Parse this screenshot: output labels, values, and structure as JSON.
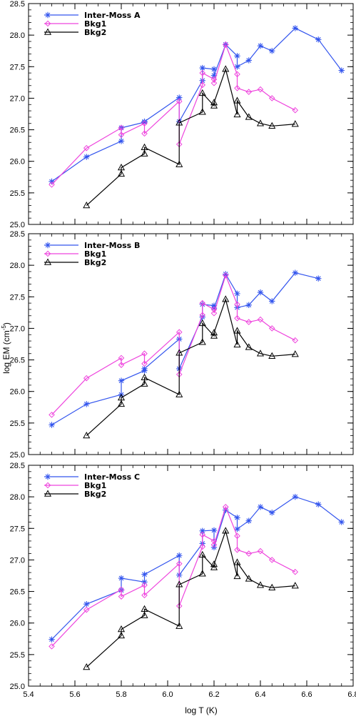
{
  "chart_data": {
    "type": "line",
    "xlabel": "log T (K)",
    "ylabel": "log EM (cm",
    "ylabel_sup": "-5",
    "ylabel_close": ")",
    "xlim": [
      5.4,
      6.8
    ],
    "ylim": [
      25.0,
      28.5
    ],
    "x_ticks": [
      "5.4",
      "5.6",
      "5.8",
      "6.0",
      "6.2",
      "6.4",
      "6.6",
      "6.8"
    ],
    "y_ticks": [
      "25.0",
      "25.5",
      "26.0",
      "26.5",
      "27.0",
      "27.5",
      "28.0",
      "28.5"
    ],
    "colors": {
      "series1": "#3355ee",
      "series2": "#ee44dd",
      "series3": "#000000"
    },
    "markers": {
      "series1": "asterisk",
      "series2": "diamond",
      "series3": "triangle"
    },
    "legend_position": "top-left",
    "panels": [
      {
        "series": [
          {
            "name": "Inter-Moss A",
            "points": [
              [
                5.5,
                25.68
              ],
              [
                5.65,
                26.07
              ],
              [
                5.8,
                26.32
              ],
              [
                5.8,
                26.53
              ],
              [
                5.9,
                26.62
              ],
              [
                5.9,
                26.63
              ],
              [
                6.05,
                27.01
              ],
              [
                6.05,
                26.63
              ],
              [
                6.15,
                27.28
              ],
              [
                6.15,
                27.48
              ],
              [
                6.2,
                27.46
              ],
              [
                6.2,
                27.36
              ],
              [
                6.25,
                27.85
              ],
              [
                6.3,
                27.67
              ],
              [
                6.3,
                27.5
              ],
              [
                6.35,
                27.6
              ],
              [
                6.4,
                27.83
              ],
              [
                6.45,
                27.75
              ],
              [
                6.55,
                28.11
              ],
              [
                6.65,
                27.93
              ],
              [
                6.75,
                27.44
              ]
            ]
          },
          {
            "name": "Bkg1",
            "points": [
              [
                5.5,
                25.63
              ],
              [
                5.65,
                26.21
              ],
              [
                5.8,
                26.53
              ],
              [
                5.8,
                26.42
              ],
              [
                5.9,
                26.6
              ],
              [
                5.9,
                26.44
              ],
              [
                6.05,
                26.95
              ],
              [
                6.05,
                26.27
              ],
              [
                6.15,
                27.21
              ],
              [
                6.15,
                27.4
              ],
              [
                6.2,
                27.3
              ],
              [
                6.2,
                27.24
              ],
              [
                6.25,
                27.85
              ],
              [
                6.3,
                27.38
              ],
              [
                6.3,
                27.16
              ],
              [
                6.35,
                27.1
              ],
              [
                6.4,
                27.14
              ],
              [
                6.45,
                27.0
              ],
              [
                6.55,
                26.81
              ]
            ]
          },
          {
            "name": "Bkg2",
            "points": [
              [
                5.65,
                25.3
              ],
              [
                5.8,
                25.8
              ],
              [
                5.8,
                25.9
              ],
              [
                5.9,
                26.12
              ],
              [
                5.9,
                26.22
              ],
              [
                6.05,
                25.95
              ],
              [
                6.05,
                26.61
              ],
              [
                6.15,
                26.78
              ],
              [
                6.15,
                27.08
              ],
              [
                6.2,
                26.88
              ],
              [
                6.2,
                26.93
              ],
              [
                6.25,
                27.46
              ],
              [
                6.3,
                26.74
              ],
              [
                6.3,
                26.96
              ],
              [
                6.35,
                26.7
              ],
              [
                6.4,
                26.6
              ],
              [
                6.45,
                26.56
              ],
              [
                6.55,
                26.59
              ]
            ]
          }
        ]
      },
      {
        "series": [
          {
            "name": "Inter-Moss B",
            "points": [
              [
                5.5,
                25.47
              ],
              [
                5.65,
                25.8
              ],
              [
                5.8,
                25.95
              ],
              [
                5.8,
                26.17
              ],
              [
                5.9,
                26.33
              ],
              [
                5.9,
                26.36
              ],
              [
                6.05,
                26.83
              ],
              [
                6.05,
                26.36
              ],
              [
                6.15,
                27.18
              ],
              [
                6.15,
                27.38
              ],
              [
                6.2,
                27.36
              ],
              [
                6.2,
                27.32
              ],
              [
                6.25,
                27.86
              ],
              [
                6.3,
                27.55
              ],
              [
                6.3,
                27.33
              ],
              [
                6.35,
                27.37
              ],
              [
                6.4,
                27.57
              ],
              [
                6.45,
                27.43
              ],
              [
                6.55,
                27.88
              ],
              [
                6.65,
                27.79
              ]
            ]
          },
          {
            "name": "Bkg1",
            "points": [
              [
                5.5,
                25.63
              ],
              [
                5.65,
                26.21
              ],
              [
                5.8,
                26.53
              ],
              [
                5.8,
                26.42
              ],
              [
                5.9,
                26.6
              ],
              [
                5.9,
                26.44
              ],
              [
                6.05,
                26.94
              ],
              [
                6.05,
                26.27
              ],
              [
                6.15,
                27.21
              ],
              [
                6.15,
                27.4
              ],
              [
                6.2,
                27.3
              ],
              [
                6.2,
                27.24
              ],
              [
                6.25,
                27.84
              ],
              [
                6.3,
                27.38
              ],
              [
                6.3,
                27.16
              ],
              [
                6.35,
                27.1
              ],
              [
                6.4,
                27.14
              ],
              [
                6.45,
                27.0
              ],
              [
                6.55,
                26.81
              ]
            ]
          },
          {
            "name": "Bkg2",
            "points": [
              [
                5.65,
                25.3
              ],
              [
                5.8,
                25.8
              ],
              [
                5.8,
                25.9
              ],
              [
                5.9,
                26.12
              ],
              [
                5.9,
                26.22
              ],
              [
                6.05,
                25.95
              ],
              [
                6.05,
                26.61
              ],
              [
                6.15,
                26.78
              ],
              [
                6.15,
                27.08
              ],
              [
                6.2,
                26.88
              ],
              [
                6.2,
                26.93
              ],
              [
                6.25,
                27.46
              ],
              [
                6.3,
                26.74
              ],
              [
                6.3,
                26.96
              ],
              [
                6.35,
                26.7
              ],
              [
                6.4,
                26.6
              ],
              [
                6.45,
                26.56
              ],
              [
                6.55,
                26.59
              ]
            ]
          }
        ]
      },
      {
        "series": [
          {
            "name": "Inter-Moss C",
            "points": [
              [
                5.5,
                25.74
              ],
              [
                5.65,
                26.3
              ],
              [
                5.8,
                26.52
              ],
              [
                5.8,
                26.71
              ],
              [
                5.9,
                26.65
              ],
              [
                5.9,
                26.77
              ],
              [
                6.05,
                27.07
              ],
              [
                6.05,
                26.76
              ],
              [
                6.15,
                27.26
              ],
              [
                6.15,
                27.46
              ],
              [
                6.2,
                27.47
              ],
              [
                6.2,
                27.2
              ],
              [
                6.25,
                27.79
              ],
              [
                6.3,
                27.67
              ],
              [
                6.3,
                27.49
              ],
              [
                6.35,
                27.62
              ],
              [
                6.4,
                27.84
              ],
              [
                6.45,
                27.75
              ],
              [
                6.55,
                28.0
              ],
              [
                6.65,
                27.88
              ],
              [
                6.75,
                27.6
              ]
            ]
          },
          {
            "name": "Bkg1",
            "points": [
              [
                5.5,
                25.63
              ],
              [
                5.65,
                26.21
              ],
              [
                5.8,
                26.53
              ],
              [
                5.8,
                26.42
              ],
              [
                5.9,
                26.6
              ],
              [
                5.9,
                26.44
              ],
              [
                6.05,
                26.94
              ],
              [
                6.05,
                26.27
              ],
              [
                6.15,
                27.21
              ],
              [
                6.15,
                27.4
              ],
              [
                6.2,
                27.3
              ],
              [
                6.2,
                27.24
              ],
              [
                6.25,
                27.84
              ],
              [
                6.3,
                27.38
              ],
              [
                6.3,
                27.16
              ],
              [
                6.35,
                27.1
              ],
              [
                6.4,
                27.14
              ],
              [
                6.45,
                27.0
              ],
              [
                6.55,
                26.81
              ]
            ]
          },
          {
            "name": "Bkg2",
            "points": [
              [
                5.65,
                25.3
              ],
              [
                5.8,
                25.8
              ],
              [
                5.8,
                25.9
              ],
              [
                5.9,
                26.12
              ],
              [
                5.9,
                26.22
              ],
              [
                6.05,
                25.95
              ],
              [
                6.05,
                26.61
              ],
              [
                6.15,
                26.78
              ],
              [
                6.15,
                27.08
              ],
              [
                6.2,
                26.88
              ],
              [
                6.2,
                26.93
              ],
              [
                6.25,
                27.46
              ],
              [
                6.3,
                26.74
              ],
              [
                6.3,
                26.96
              ],
              [
                6.35,
                26.7
              ],
              [
                6.4,
                26.6
              ],
              [
                6.45,
                26.56
              ],
              [
                6.55,
                26.59
              ]
            ]
          }
        ]
      }
    ]
  }
}
